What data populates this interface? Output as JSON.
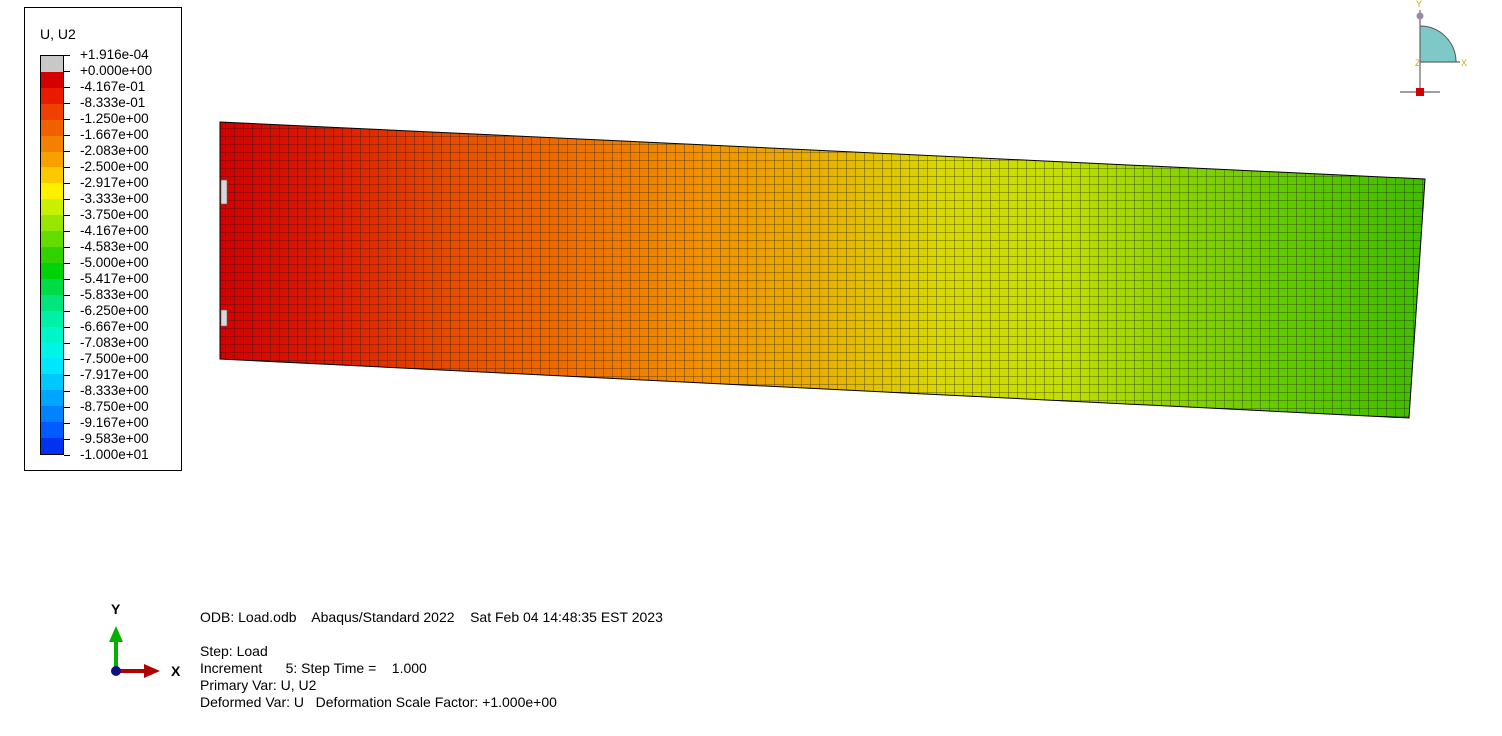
{
  "legend": {
    "title": "U, U2",
    "levels": [
      {
        "label": "+1.916e-04",
        "color": "#c8c8c8"
      },
      {
        "label": "+0.000e+00",
        "color": "#d40000"
      },
      {
        "label": "-4.167e-01",
        "color": "#e81a00"
      },
      {
        "label": "-8.333e-01",
        "color": "#f04000"
      },
      {
        "label": "-1.250e+00",
        "color": "#f06000"
      },
      {
        "label": "-1.667e+00",
        "color": "#f48000"
      },
      {
        "label": "-2.083e+00",
        "color": "#f8a000"
      },
      {
        "label": "-2.500e+00",
        "color": "#fcc800"
      },
      {
        "label": "-2.917e+00",
        "color": "#fff000"
      },
      {
        "label": "-3.333e+00",
        "color": "#c8f000"
      },
      {
        "label": "-3.750e+00",
        "color": "#96e600"
      },
      {
        "label": "-4.167e+00",
        "color": "#64dc00"
      },
      {
        "label": "-4.583e+00",
        "color": "#32d200"
      },
      {
        "label": "-5.000e+00",
        "color": "#00d20a"
      },
      {
        "label": "-5.417e+00",
        "color": "#00dc46"
      },
      {
        "label": "-5.833e+00",
        "color": "#00e67d"
      },
      {
        "label": "-6.250e+00",
        "color": "#00f0a5"
      },
      {
        "label": "-6.667e+00",
        "color": "#00f5c8"
      },
      {
        "label": "-7.083e+00",
        "color": "#00f5e6"
      },
      {
        "label": "-7.500e+00",
        "color": "#00e6ff"
      },
      {
        "label": "-7.917e+00",
        "color": "#00c8ff"
      },
      {
        "label": "-8.333e+00",
        "color": "#00a5ff"
      },
      {
        "label": "-8.750e+00",
        "color": "#0082ff"
      },
      {
        "label": "-9.167e+00",
        "color": "#005aff"
      },
      {
        "label": "-9.583e+00",
        "color": "#0032f0"
      },
      {
        "label": "-1.000e+01",
        "color": "#0000e6"
      }
    ]
  },
  "model": {
    "gradient_colors": [
      "#d40000",
      "#e01e00",
      "#e85000",
      "#f07000",
      "#f29000",
      "#e8b000",
      "#d8d800",
      "#c2de00",
      "#88d200",
      "#5cc800",
      "#40bc00"
    ],
    "mesh_line_color": "#1a1a1a"
  },
  "triad": {
    "y_label": "Y",
    "x_label": "X",
    "y_color": "#00b000",
    "x_color": "#b00000",
    "origin_color": "#101080"
  },
  "view_triad": {
    "y_label": "Y",
    "x_label": "X",
    "z_label": "Z",
    "quadrant_color": "#7fc8c8",
    "accent_color": "#d4a800"
  },
  "info": {
    "odb_line": "ODB: Load.odb    Abaqus/Standard 2022    Sat Feb 04 14:48:35 EST 2023",
    "step_line": "Step: Load",
    "increment_line": "Increment      5: Step Time =    1.000",
    "primary_var_line": "Primary Var: U, U2",
    "deformed_var_line": "Deformed Var: U   Deformation Scale Factor: +1.000e+00"
  }
}
